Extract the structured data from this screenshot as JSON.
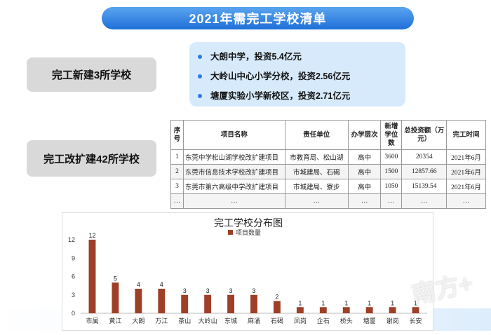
{
  "header": {
    "title": "2021年需完工学校清单"
  },
  "new_box": {
    "label": "完工新建3所学校"
  },
  "expand_box": {
    "label": "完工改扩建42所学校"
  },
  "new_schools": [
    "大朗中学，投资5.4亿元",
    "大岭山中心小学分校，投资2.56亿元",
    "塘厦实验小学新校区，投资2.71亿元"
  ],
  "table": {
    "headers": [
      "序号",
      "项目名称",
      "责任单位",
      "办学层次",
      "新增学位数",
      "总投资额（万元）",
      "完工时间"
    ],
    "rows": [
      [
        "1",
        "东莞中学松山湖学校改扩建项目",
        "市教育局、松山湖",
        "高中",
        "3600",
        "20354",
        "2021年6月"
      ],
      [
        "2",
        "东莞市信息技术学校改扩建项目",
        "市城建局、石碣",
        "高中",
        "1500",
        "12857.66",
        "2021年6月"
      ],
      [
        "3",
        "东莞市第六高级中学改扩建项目",
        "市城建局、寮步",
        "高中",
        "1050",
        "15139.54",
        "2021年6月"
      ],
      [
        "…",
        "…",
        "…",
        "…",
        "…",
        "…",
        "…"
      ]
    ]
  },
  "chart_data": {
    "type": "bar",
    "title": "完工学校分布图",
    "legend": "项目数量",
    "legend_position": "top",
    "categories": [
      "市属",
      "黄江",
      "大朗",
      "万江",
      "茶山",
      "大岭山",
      "东城",
      "麻涌",
      "石碣",
      "凤岗",
      "企石",
      "桥头",
      "塘厦",
      "谢岗",
      "长安"
    ],
    "values": [
      12,
      5,
      4,
      4,
      3,
      3,
      3,
      3,
      2,
      1,
      1,
      1,
      1,
      1,
      1
    ],
    "yticks": [
      0,
      3,
      6,
      9,
      12
    ],
    "ylim": [
      0,
      12
    ],
    "grid": false,
    "bar_color": "#9e3f27"
  },
  "watermark": {
    "text": "南方+"
  }
}
